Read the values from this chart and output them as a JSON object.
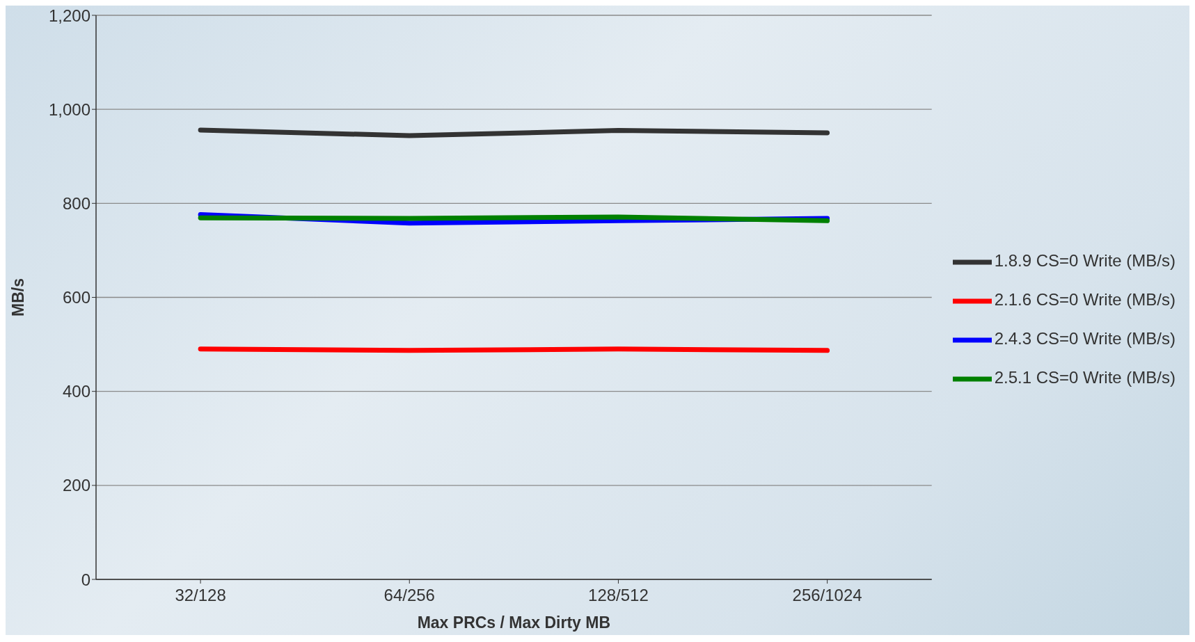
{
  "chart_data": {
    "type": "line",
    "xlabel": "Max PRCs / Max Dirty MB",
    "ylabel": "MB/s",
    "categories": [
      "32/128",
      "64/256",
      "128/512",
      "256/1024"
    ],
    "series": [
      {
        "name": "1.8.9 CS=0 Write (MB/s)",
        "color": "#333333",
        "values": [
          956,
          944,
          955,
          950
        ]
      },
      {
        "name": "2.1.6 CS=0 Write (MB/s)",
        "color": "#ff0000",
        "values": [
          490,
          487,
          490,
          487
        ]
      },
      {
        "name": "2.4.3 CS=0 Write (MB/s)",
        "color": "#0000ff",
        "values": [
          776,
          758,
          763,
          768
        ]
      },
      {
        "name": "2.5.1 CS=0 Write (MB/s)",
        "color": "#008000",
        "values": [
          769,
          768,
          771,
          763
        ]
      }
    ],
    "ylim": [
      0,
      1200
    ],
    "yticks": [
      0,
      200,
      400,
      600,
      800,
      {
        "value": 1000,
        "label": "1,000"
      },
      {
        "value": 1200,
        "label": "1,200"
      }
    ],
    "grid": "y",
    "legend": "right",
    "marker": "none",
    "line_style": "solid"
  }
}
